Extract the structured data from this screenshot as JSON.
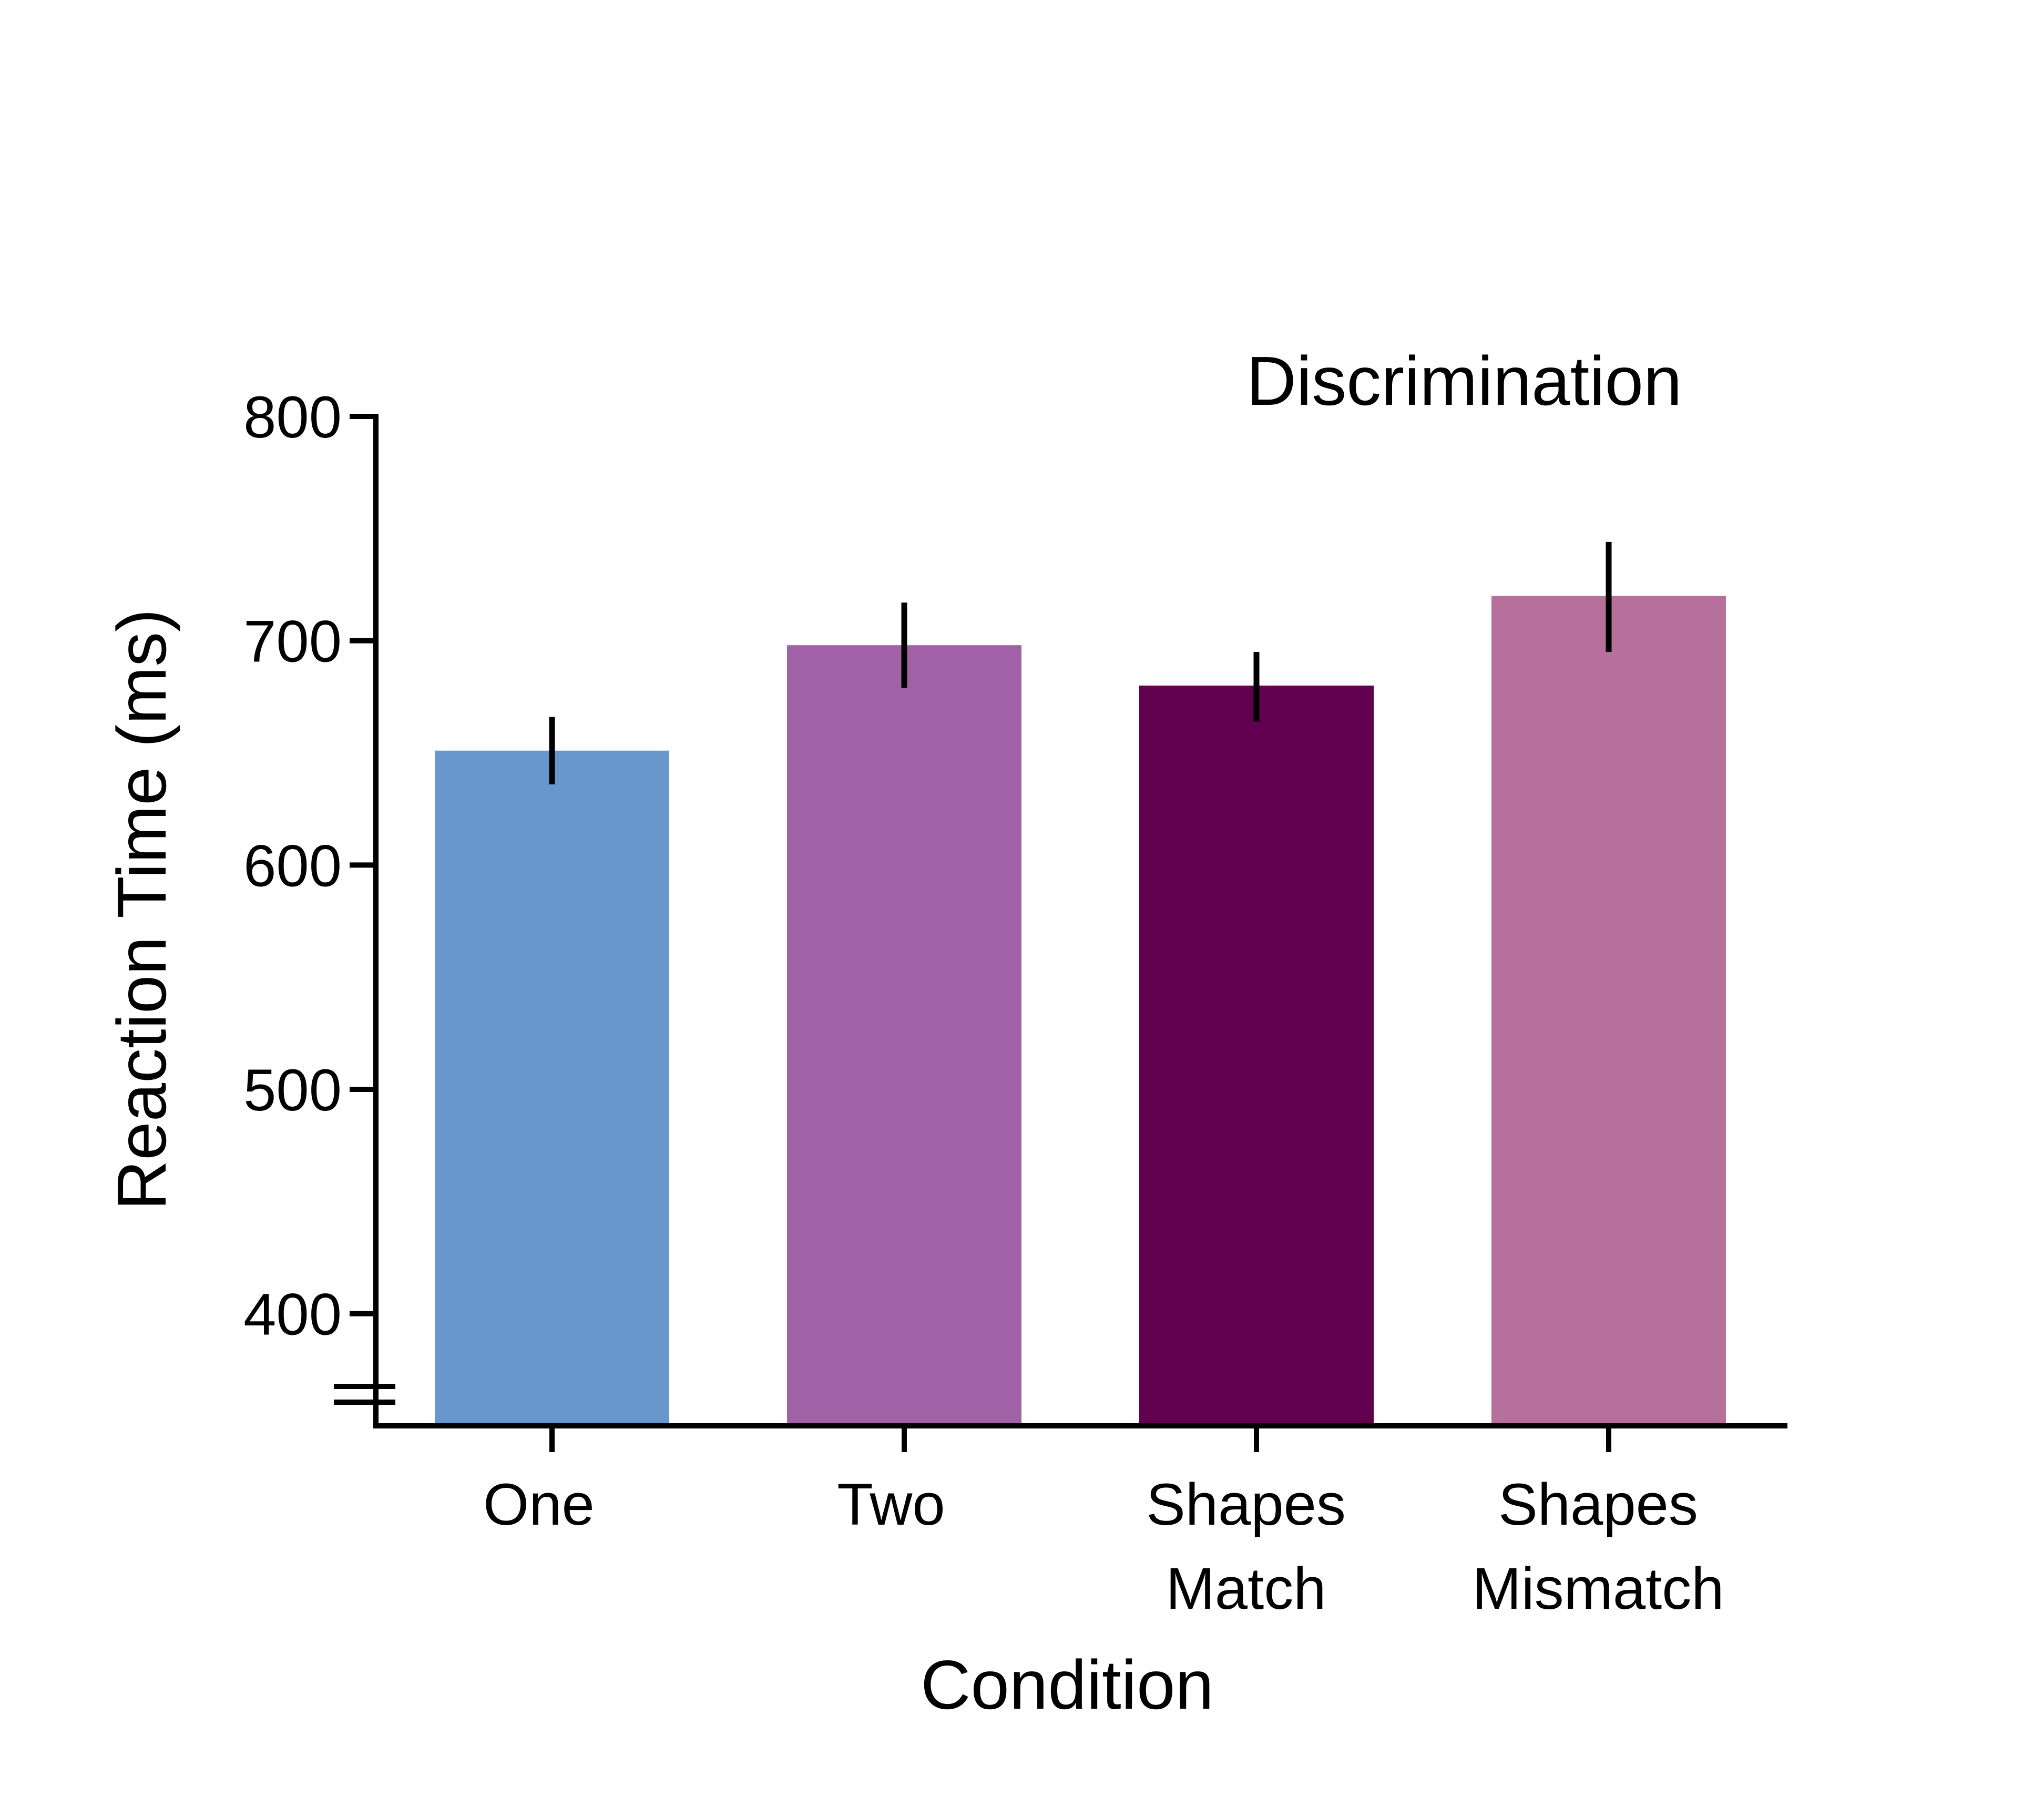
{
  "chart_data": {
    "type": "bar",
    "title": "Discrimination",
    "xlabel": "Condition",
    "ylabel": "Reaction Time (ms)",
    "categories": [
      [
        "One"
      ],
      [
        "Two"
      ],
      [
        "Shapes",
        "Match"
      ],
      [
        "Shapes",
        "Mismatch"
      ]
    ],
    "values": [
      651,
      698,
      680,
      720
    ],
    "error_low": [
      636,
      679,
      664,
      695
    ],
    "error_high": [
      666,
      717,
      695,
      744
    ],
    "colors": [
      "#6897CE",
      "#A061A6",
      "#620050",
      "#B76F9B"
    ],
    "yticks": [
      400,
      500,
      600,
      700,
      800
    ],
    "ylim": [
      350,
      800
    ],
    "axis_break": true,
    "grid": false,
    "legend": "none"
  }
}
